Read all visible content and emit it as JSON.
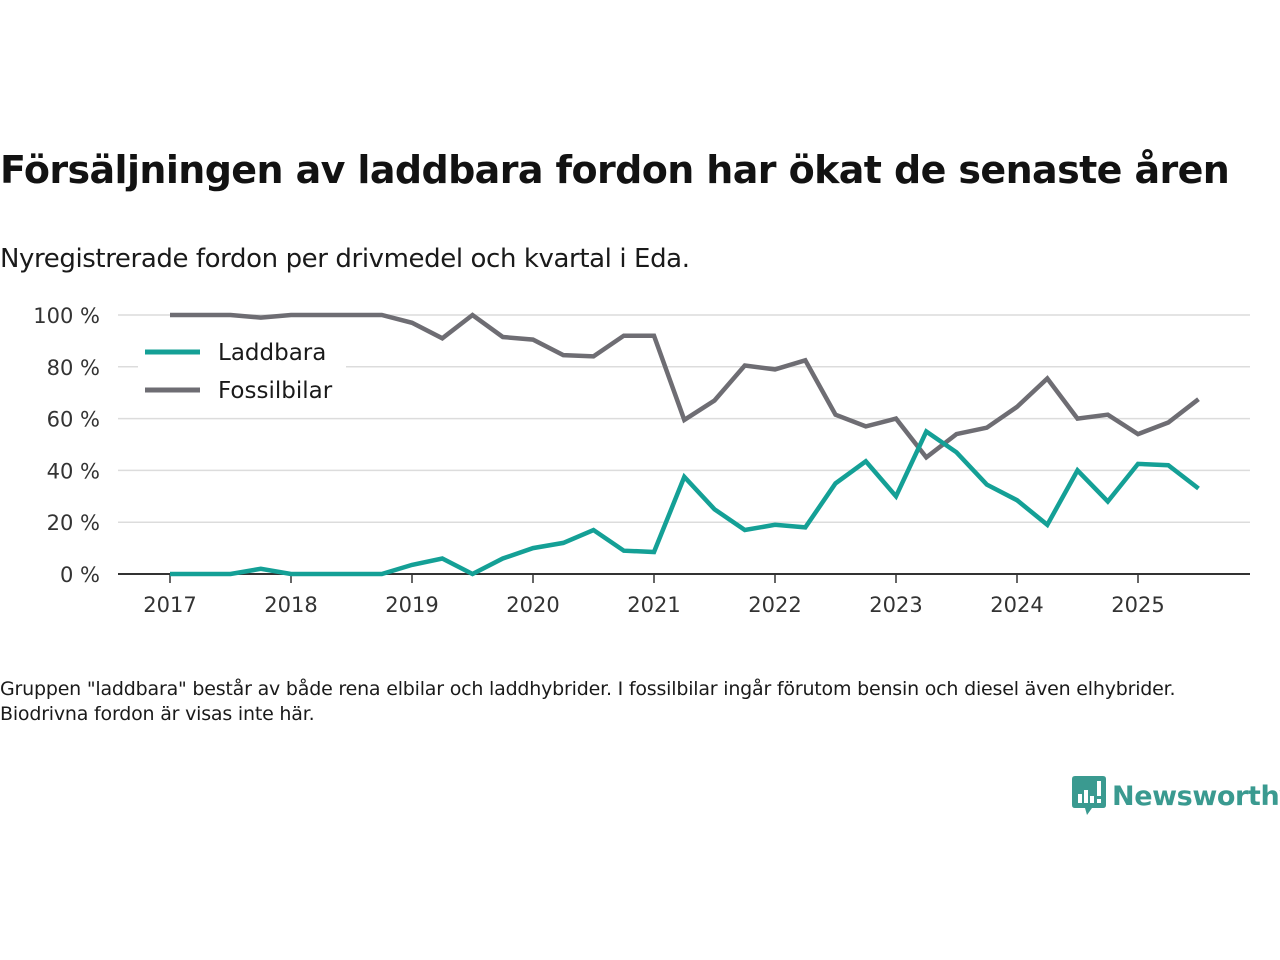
{
  "header": {
    "title": "Försäljningen av laddbara fordon har ökat de senaste åren",
    "subtitle": "Nyregistrerade fordon per drivmedel och kvartal i Eda."
  },
  "footnote": "Gruppen \"laddbara\" består av både rena elbilar och laddhybrider. I fossilbilar ingår förutom bensin och diesel även elhybrider. Biodrivna fordon är visas inte här.",
  "brand": {
    "name": "Newsworthy",
    "icon": "newsworthy-chart-bubble-icon",
    "color": "#3a9a90"
  },
  "chart_data": {
    "type": "line",
    "title": "Försäljningen av laddbara fordon har ökat de senaste åren",
    "subtitle": "Nyregistrerade fordon per drivmedel och kvartal i Eda.",
    "xlabel": "",
    "ylabel": "",
    "x_unit": "quarter",
    "x": [
      "2017-Q1",
      "2017-Q2",
      "2017-Q3",
      "2017-Q4",
      "2018-Q1",
      "2018-Q2",
      "2018-Q3",
      "2018-Q4",
      "2019-Q1",
      "2019-Q2",
      "2019-Q3",
      "2019-Q4",
      "2020-Q1",
      "2020-Q2",
      "2020-Q3",
      "2020-Q4",
      "2021-Q1",
      "2021-Q2",
      "2021-Q3",
      "2021-Q4",
      "2022-Q1",
      "2022-Q2",
      "2022-Q3",
      "2022-Q4",
      "2023-Q1",
      "2023-Q2",
      "2023-Q3",
      "2023-Q4",
      "2024-Q1",
      "2024-Q2",
      "2024-Q3",
      "2024-Q4",
      "2025-Q1",
      "2025-Q2",
      "2025-Q3"
    ],
    "xticks": [
      "2017",
      "2018",
      "2019",
      "2020",
      "2021",
      "2022",
      "2023",
      "2024",
      "2025"
    ],
    "yticks": [
      "0 %",
      "20 %",
      "40 %",
      "60 %",
      "80 %",
      "100 %"
    ],
    "ylim": [
      0,
      100
    ],
    "grid": true,
    "legend": "top-left",
    "series": [
      {
        "name": "Laddbara",
        "color": "#14a096",
        "values": [
          0,
          0,
          0,
          2,
          0,
          0,
          0,
          0,
          3.5,
          6,
          0,
          6,
          10,
          12,
          17,
          9,
          8.5,
          37.5,
          25,
          17,
          19,
          18,
          35,
          43.5,
          30,
          55,
          47,
          34.5,
          28.5,
          19,
          40,
          28,
          42.5,
          42,
          33
        ]
      },
      {
        "name": "Fossilbilar",
        "color": "#6e6d73",
        "values": [
          100,
          100,
          100,
          99,
          100,
          100,
          100,
          100,
          97,
          91,
          100,
          91.5,
          90.5,
          84.5,
          84,
          92,
          92,
          59.5,
          67,
          80.5,
          79,
          82.5,
          61.5,
          57,
          60,
          45,
          54,
          56.5,
          64.5,
          75.5,
          60,
          61.5,
          54,
          58.5,
          67.5
        ]
      }
    ]
  }
}
